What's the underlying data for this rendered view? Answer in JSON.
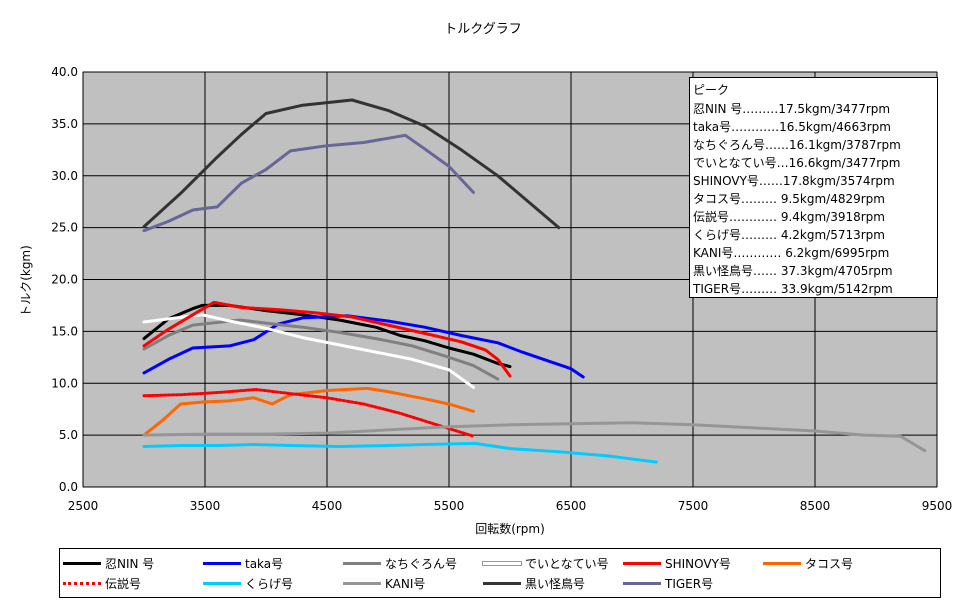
{
  "chart_data": {
    "type": "line",
    "title": "トルクグラフ",
    "xlabel": "回転数(rpm)",
    "ylabel": "トルク(kgm)",
    "xlim": [
      2500,
      9500
    ],
    "ylim": [
      0,
      40
    ],
    "xticks": [
      "2500",
      "3500",
      "4500",
      "5500",
      "6500",
      "7500",
      "8500",
      "9500"
    ],
    "yticks": [
      "0.0",
      "5.0",
      "10.0",
      "15.0",
      "20.0",
      "25.0",
      "30.0",
      "35.0",
      "40.0"
    ],
    "grid": true,
    "plot_background": "#c0c0c0",
    "legend_position": "bottom",
    "peak_box": {
      "title": "ピーク",
      "rows": [
        "忍NIN 号………17.5kgm/3477rpm",
        "taka号…………16.5kgm/4663rpm",
        "なちぐろん号……16.1kgm/3787rpm",
        "でいとなてい号…16.6kgm/3477rpm",
        "SHINOVY号……17.8kgm/3574rpm",
        "タコス号………  9.5kgm/4829rpm",
        "伝説号…………  9.4kgm/3918rpm",
        "くらげ号………  4.2kgm/5713rpm",
        "KANI号…………  6.2kgm/6995rpm",
        "黒い怪鳥号……  37.3kgm/4705rpm",
        "TIGER号………  33.9kgm/5142rpm"
      ]
    },
    "series": [
      {
        "name": "忍NIN 号",
        "color": "#000000",
        "width": 3,
        "dash": "",
        "points": [
          [
            3000,
            14.3
          ],
          [
            3200,
            16.2
          ],
          [
            3400,
            17.2
          ],
          [
            3477,
            17.5
          ],
          [
            3700,
            17.5
          ],
          [
            4000,
            17.0
          ],
          [
            4300,
            16.6
          ],
          [
            4600,
            16.1
          ],
          [
            4900,
            15.4
          ],
          [
            5100,
            14.6
          ],
          [
            5300,
            14.1
          ],
          [
            5500,
            13.4
          ],
          [
            5700,
            12.8
          ],
          [
            5900,
            11.9
          ],
          [
            6000,
            11.6
          ]
        ]
      },
      {
        "name": "taka号",
        "color": "#0000ff",
        "width": 3,
        "dash": "",
        "points": [
          [
            3000,
            11.0
          ],
          [
            3200,
            12.3
          ],
          [
            3400,
            13.4
          ],
          [
            3700,
            13.6
          ],
          [
            3900,
            14.2
          ],
          [
            4100,
            15.7
          ],
          [
            4300,
            16.3
          ],
          [
            4663,
            16.5
          ],
          [
            5000,
            16.0
          ],
          [
            5300,
            15.4
          ],
          [
            5600,
            14.6
          ],
          [
            5900,
            13.9
          ],
          [
            6100,
            13.0
          ],
          [
            6300,
            12.2
          ],
          [
            6500,
            11.4
          ],
          [
            6600,
            10.6
          ]
        ]
      },
      {
        "name": "なちぐろん号",
        "color": "#808080",
        "width": 3,
        "dash": "",
        "points": [
          [
            3000,
            13.3
          ],
          [
            3200,
            14.6
          ],
          [
            3400,
            15.6
          ],
          [
            3787,
            16.1
          ],
          [
            4000,
            15.8
          ],
          [
            4300,
            15.4
          ],
          [
            4600,
            14.9
          ],
          [
            4900,
            14.3
          ],
          [
            5200,
            13.6
          ],
          [
            5500,
            12.5
          ],
          [
            5700,
            11.7
          ],
          [
            5900,
            10.4
          ]
        ]
      },
      {
        "name": "でいとなてい号",
        "color": "#ffffff",
        "width": 3,
        "dash": "",
        "points": [
          [
            3000,
            15.9
          ],
          [
            3200,
            16.2
          ],
          [
            3477,
            16.6
          ],
          [
            3700,
            16.0
          ],
          [
            4000,
            15.3
          ],
          [
            4300,
            14.4
          ],
          [
            4600,
            13.7
          ],
          [
            4900,
            13.0
          ],
          [
            5200,
            12.3
          ],
          [
            5500,
            11.3
          ],
          [
            5700,
            9.6
          ]
        ]
      },
      {
        "name": "SHINOVY号",
        "color": "#ff0000",
        "width": 3,
        "dash": "",
        "points": [
          [
            3000,
            13.6
          ],
          [
            3200,
            15.2
          ],
          [
            3400,
            16.6
          ],
          [
            3574,
            17.8
          ],
          [
            3800,
            17.3
          ],
          [
            4100,
            17.1
          ],
          [
            4400,
            16.8
          ],
          [
            4700,
            16.4
          ],
          [
            5000,
            15.6
          ],
          [
            5300,
            14.8
          ],
          [
            5600,
            14.0
          ],
          [
            5800,
            13.2
          ],
          [
            5900,
            12.3
          ],
          [
            6000,
            10.7
          ]
        ]
      },
      {
        "name": "タコス号",
        "color": "#ff6600",
        "width": 3,
        "dash": "",
        "points": [
          [
            3000,
            5.0
          ],
          [
            3150,
            6.4
          ],
          [
            3300,
            8.0
          ],
          [
            3500,
            8.2
          ],
          [
            3700,
            8.3
          ],
          [
            3900,
            8.6
          ],
          [
            4050,
            8.0
          ],
          [
            4200,
            8.9
          ],
          [
            4500,
            9.3
          ],
          [
            4829,
            9.5
          ],
          [
            5000,
            9.2
          ],
          [
            5300,
            8.5
          ],
          [
            5500,
            8.0
          ],
          [
            5700,
            7.3
          ]
        ]
      },
      {
        "name": "伝説号",
        "color": "#ff0000",
        "width": 3,
        "dash": "2,2",
        "points": [
          [
            3000,
            8.8
          ],
          [
            3300,
            8.9
          ],
          [
            3600,
            9.1
          ],
          [
            3918,
            9.4
          ],
          [
            4200,
            9.0
          ],
          [
            4500,
            8.6
          ],
          [
            4800,
            8.0
          ],
          [
            5100,
            7.1
          ],
          [
            5400,
            6.0
          ],
          [
            5700,
            4.9
          ]
        ]
      },
      {
        "name": "くらげ号",
        "color": "#00ccff",
        "width": 3,
        "dash": "",
        "points": [
          [
            3000,
            3.9
          ],
          [
            3300,
            4.0
          ],
          [
            3600,
            4.0
          ],
          [
            3900,
            4.1
          ],
          [
            4200,
            4.0
          ],
          [
            4600,
            3.9
          ],
          [
            5000,
            4.0
          ],
          [
            5300,
            4.1
          ],
          [
            5713,
            4.2
          ],
          [
            6000,
            3.7
          ],
          [
            6400,
            3.4
          ],
          [
            6800,
            3.0
          ],
          [
            7200,
            2.4
          ]
        ]
      },
      {
        "name": "KANI号",
        "color": "#969696",
        "width": 3,
        "dash": "",
        "points": [
          [
            3000,
            5.0
          ],
          [
            3500,
            5.1
          ],
          [
            4000,
            5.1
          ],
          [
            4500,
            5.2
          ],
          [
            5000,
            5.5
          ],
          [
            5500,
            5.8
          ],
          [
            6000,
            6.0
          ],
          [
            6500,
            6.1
          ],
          [
            6995,
            6.2
          ],
          [
            7500,
            6.0
          ],
          [
            8000,
            5.7
          ],
          [
            8500,
            5.4
          ],
          [
            8900,
            5.0
          ],
          [
            9200,
            4.9
          ],
          [
            9400,
            3.5
          ]
        ]
      },
      {
        "name": "黒い怪鳥号",
        "color": "#333333",
        "width": 3,
        "dash": "",
        "points": [
          [
            3000,
            25.1
          ],
          [
            3300,
            28.3
          ],
          [
            3600,
            31.8
          ],
          [
            3800,
            34.0
          ],
          [
            4000,
            36.0
          ],
          [
            4300,
            36.8
          ],
          [
            4705,
            37.3
          ],
          [
            5000,
            36.3
          ],
          [
            5300,
            34.8
          ],
          [
            5600,
            32.5
          ],
          [
            5900,
            30.0
          ],
          [
            6100,
            28.0
          ],
          [
            6400,
            25.0
          ]
        ]
      },
      {
        "name": "TIGER号",
        "color": "#666699",
        "width": 3,
        "dash": "",
        "points": [
          [
            3000,
            24.7
          ],
          [
            3200,
            25.6
          ],
          [
            3400,
            26.7
          ],
          [
            3600,
            27.0
          ],
          [
            3800,
            29.3
          ],
          [
            4000,
            30.6
          ],
          [
            4200,
            32.4
          ],
          [
            4500,
            32.9
          ],
          [
            4800,
            33.2
          ],
          [
            5142,
            33.9
          ],
          [
            5300,
            32.6
          ],
          [
            5500,
            30.9
          ],
          [
            5700,
            28.4
          ]
        ]
      }
    ]
  }
}
